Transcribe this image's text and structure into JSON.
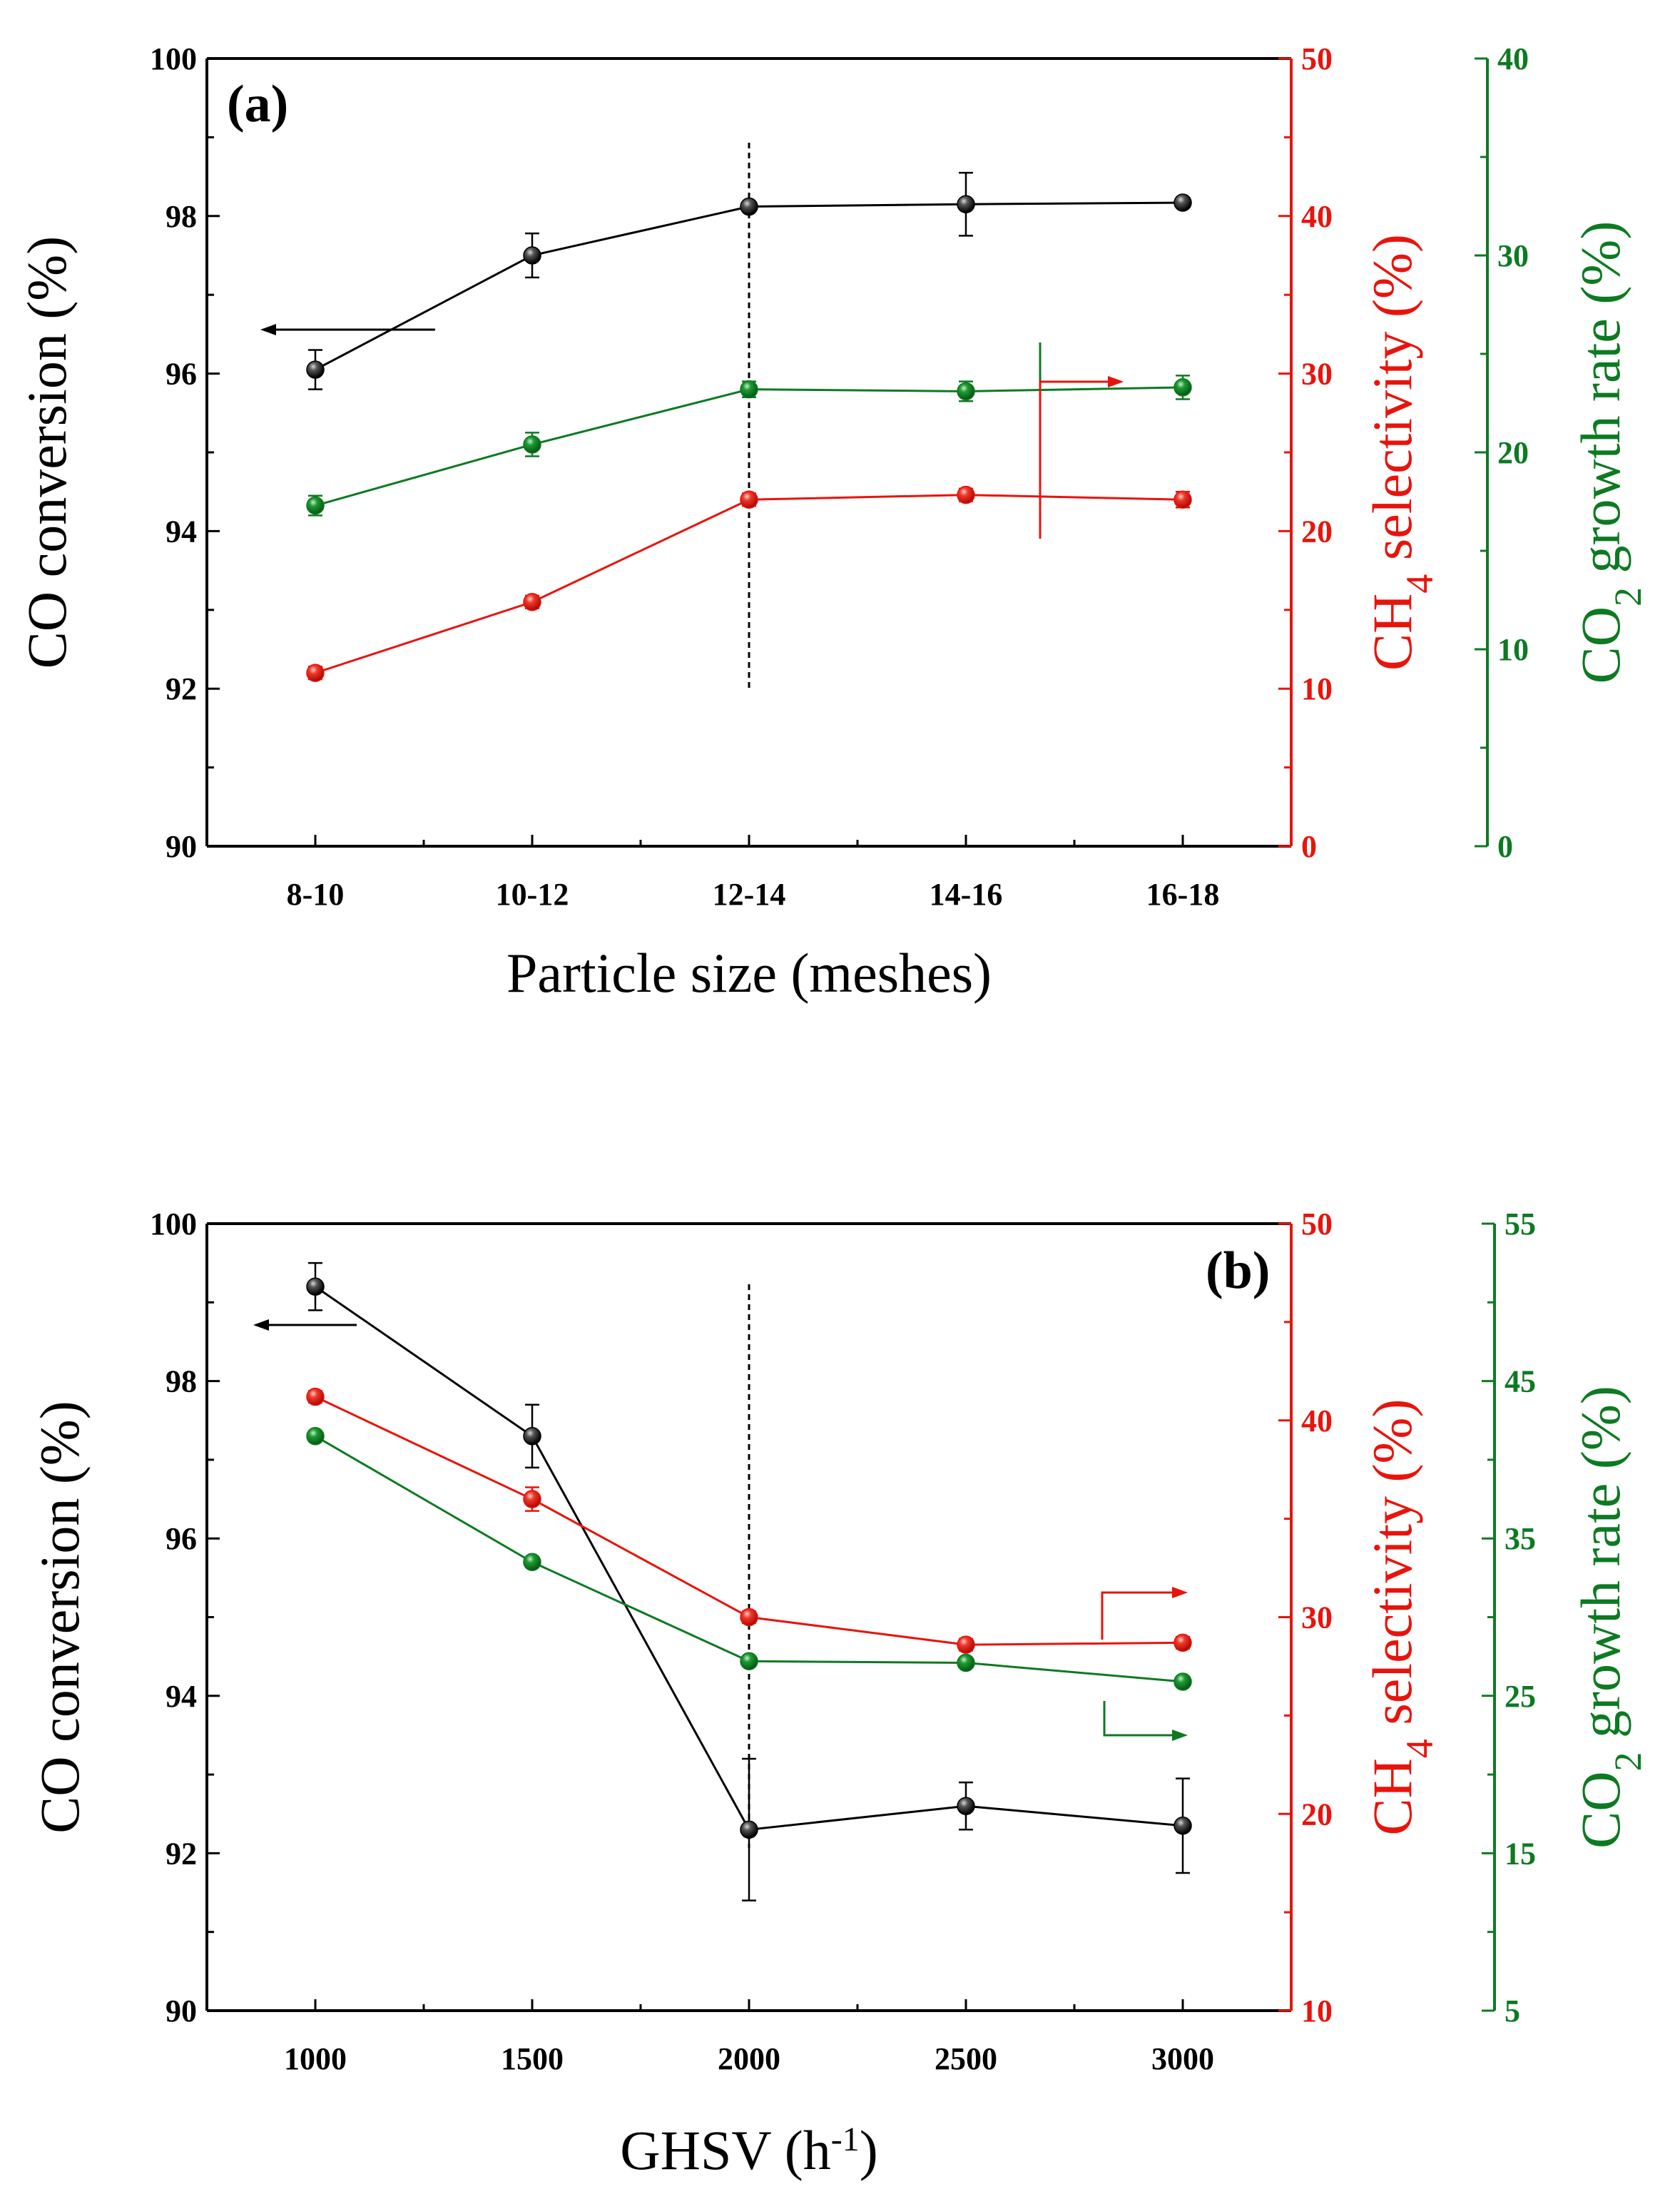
{
  "chart_data": [
    {
      "type": "line",
      "panel_label": "(a)",
      "x_categories": [
        "8-10",
        "10-12",
        "12-14",
        "14-16",
        "16-18"
      ],
      "xlabel": "Particle size (meshes)",
      "axes": {
        "left": {
          "label_parts": [
            "CO conversion (%)"
          ],
          "ylim": [
            90,
            100
          ],
          "ticks": [
            "90",
            "92",
            "94",
            "96",
            "98",
            "100"
          ],
          "color": "#000000"
        },
        "right1": {
          "label_parts": [
            "CH",
            "4",
            " selectivity (%)"
          ],
          "ylim": [
            0,
            50
          ],
          "ticks": [
            "0",
            "10",
            "20",
            "30",
            "40",
            "50"
          ],
          "color": "#e8140c"
        },
        "right2": {
          "label_parts": [
            "CO",
            "2",
            " growth rate (%)"
          ],
          "ylim": [
            0,
            40
          ],
          "ticks": [
            "0",
            "10",
            "20",
            "30",
            "40"
          ],
          "color": "#0d7a22"
        }
      },
      "series": [
        {
          "name": "CO conversion",
          "axis": "left",
          "color": "#000000",
          "values": [
            96.05,
            97.5,
            98.12,
            98.15,
            98.17
          ],
          "errors": [
            0.25,
            0.28,
            0.05,
            0.4,
            0.05
          ]
        },
        {
          "name": "CH4 selectivity",
          "axis": "right1",
          "color": "#e8140c",
          "values": [
            11.0,
            15.5,
            22.0,
            22.3,
            22.0
          ],
          "errors": [
            0.4,
            0.4,
            0.4,
            0.4,
            0.5
          ]
        },
        {
          "name": "CO2 growth rate",
          "axis": "right2",
          "color": "#0d7a22",
          "values": [
            17.3,
            20.4,
            23.2,
            23.1,
            23.3
          ],
          "errors": [
            0.5,
            0.6,
            0.4,
            0.5,
            0.6
          ]
        }
      ],
      "vline_at": "12-14",
      "arrows": [
        {
          "axis": "left",
          "direction": "left"
        },
        {
          "axis": "right2",
          "direction": "right"
        },
        {
          "axis": "right1",
          "direction": "right"
        }
      ]
    },
    {
      "type": "line",
      "panel_label": "(b)",
      "x_categories": [
        "1000",
        "1500",
        "2000",
        "2500",
        "3000"
      ],
      "xlabel_parts": [
        "GHSV (h",
        "-1",
        ")"
      ],
      "axes": {
        "left": {
          "label_parts": [
            "CO conversion (%)"
          ],
          "ylim": [
            90,
            100
          ],
          "ticks": [
            "90",
            "92",
            "94",
            "96",
            "98",
            "100"
          ],
          "color": "#000000"
        },
        "right1": {
          "label_parts": [
            "CH",
            "4",
            " selectivity (%)"
          ],
          "ylim": [
            10,
            50
          ],
          "ticks": [
            "10",
            "20",
            "30",
            "40",
            "50"
          ],
          "color": "#e8140c"
        },
        "right2": {
          "label_parts": [
            "CO",
            "2",
            " growth rate (%)"
          ],
          "ylim": [
            5,
            55
          ],
          "ticks": [
            "5",
            "15",
            "25",
            "35",
            "45",
            "55"
          ],
          "color": "#0d7a22"
        }
      },
      "series": [
        {
          "name": "CO conversion",
          "axis": "left",
          "color": "#000000",
          "values": [
            99.2,
            97.3,
            92.3,
            92.6,
            92.35
          ],
          "errors": [
            0.3,
            0.4,
            0.9,
            0.3,
            0.6
          ]
        },
        {
          "name": "CH4 selectivity",
          "axis": "right1",
          "color": "#e8140c",
          "values": [
            41.2,
            36.0,
            30.0,
            28.6,
            28.7
          ],
          "errors": [
            0.3,
            0.6,
            0.3,
            0.3,
            0.3
          ]
        },
        {
          "name": "CO2 growth rate",
          "axis": "right2",
          "color": "#0d7a22",
          "values": [
            41.5,
            33.5,
            27.2,
            27.1,
            25.9
          ],
          "errors": [
            0.3,
            0.3,
            0.3,
            0.3,
            0.3
          ]
        }
      ],
      "vline_at": "2000",
      "arrows": [
        {
          "axis": "left",
          "direction": "left"
        },
        {
          "axis": "right1",
          "direction": "right"
        },
        {
          "axis": "right2",
          "direction": "right"
        }
      ]
    }
  ]
}
